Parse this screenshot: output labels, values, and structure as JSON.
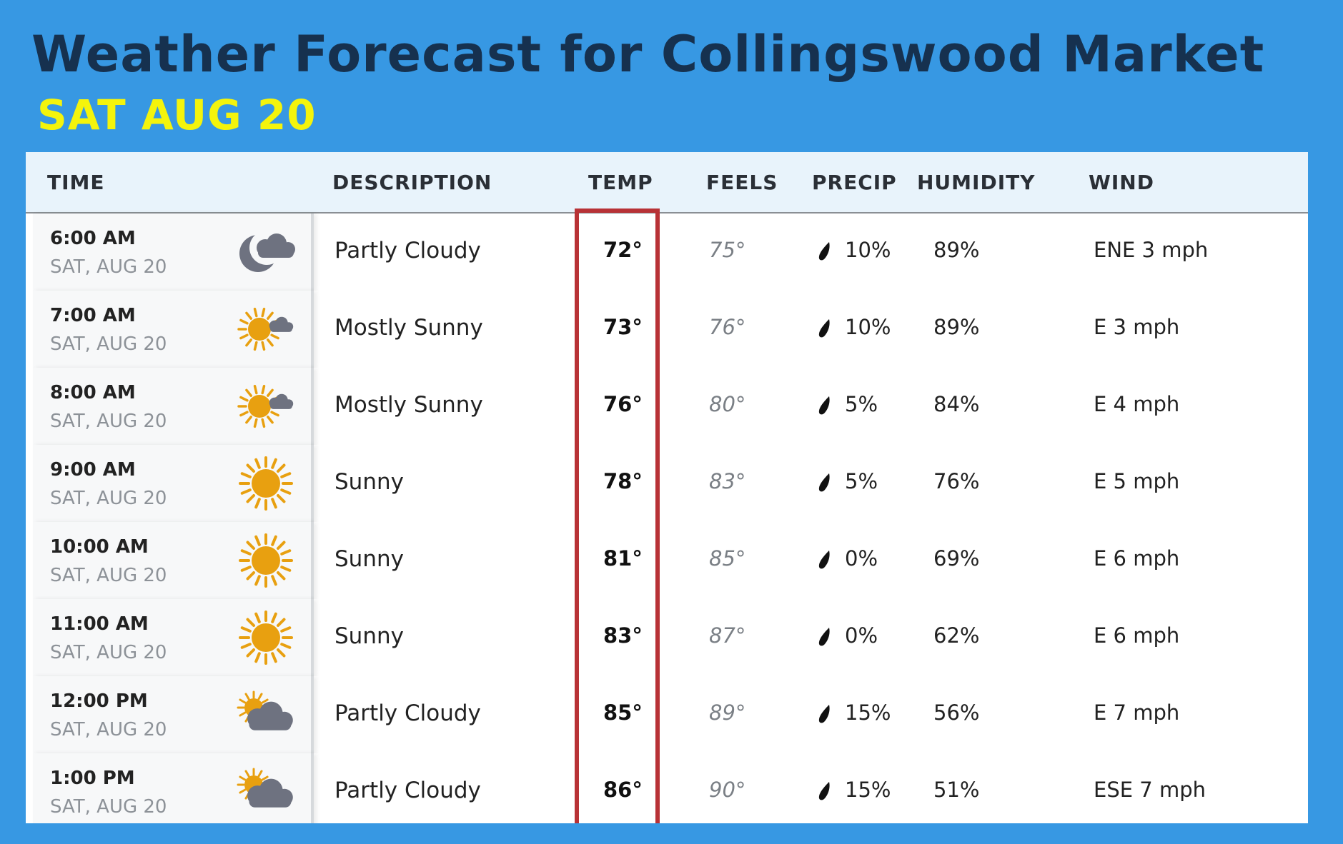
{
  "title": "Weather Forecast for Collingswood Market",
  "subtitle": "SAT AUG 20",
  "colors": {
    "background": "#3798e3",
    "title": "#16314f",
    "subtitle": "#f4f40c",
    "highlight": "#b83236",
    "sun": "#e8a010",
    "cloud": "#6e7280"
  },
  "headers": {
    "time": "TIME",
    "description": "DESCRIPTION",
    "temp": "TEMP",
    "feels": "FEELS",
    "precip": "PRECIP",
    "humidity": "HUMIDITY",
    "wind": "WIND"
  },
  "rows": [
    {
      "time": "6:00 AM",
      "date": "SAT, AUG 20",
      "icon": "moon-cloud-icon",
      "description": "Partly Cloudy",
      "temp": "72°",
      "feels": "75°",
      "precip": "10%",
      "humidity": "89%",
      "wind": "ENE 3 mph"
    },
    {
      "time": "7:00 AM",
      "date": "SAT, AUG 20",
      "icon": "sun-small-cloud-icon",
      "description": "Mostly Sunny",
      "temp": "73°",
      "feels": "76°",
      "precip": "10%",
      "humidity": "89%",
      "wind": "E 3 mph"
    },
    {
      "time": "8:00 AM",
      "date": "SAT, AUG 20",
      "icon": "sun-small-cloud-icon",
      "description": "Mostly Sunny",
      "temp": "76°",
      "feels": "80°",
      "precip": "5%",
      "humidity": "84%",
      "wind": "E 4 mph"
    },
    {
      "time": "9:00 AM",
      "date": "SAT, AUG 20",
      "icon": "sun-icon",
      "description": "Sunny",
      "temp": "78°",
      "feels": "83°",
      "precip": "5%",
      "humidity": "76%",
      "wind": "E 5 mph"
    },
    {
      "time": "10:00 AM",
      "date": "SAT, AUG 20",
      "icon": "sun-icon",
      "description": "Sunny",
      "temp": "81°",
      "feels": "85°",
      "precip": "0%",
      "humidity": "69%",
      "wind": "E 6 mph"
    },
    {
      "time": "11:00 AM",
      "date": "SAT, AUG 20",
      "icon": "sun-icon",
      "description": "Sunny",
      "temp": "83°",
      "feels": "87°",
      "precip": "0%",
      "humidity": "62%",
      "wind": "E 6 mph"
    },
    {
      "time": "12:00 PM",
      "date": "SAT, AUG 20",
      "icon": "sun-behind-cloud-icon",
      "description": "Partly Cloudy",
      "temp": "85°",
      "feels": "89°",
      "precip": "15%",
      "humidity": "56%",
      "wind": "E 7 mph"
    },
    {
      "time": "1:00 PM",
      "date": "SAT, AUG 20",
      "icon": "sun-behind-cloud-icon",
      "description": "Partly Cloudy",
      "temp": "86°",
      "feels": "90°",
      "precip": "15%",
      "humidity": "51%",
      "wind": "ESE 7 mph"
    }
  ]
}
